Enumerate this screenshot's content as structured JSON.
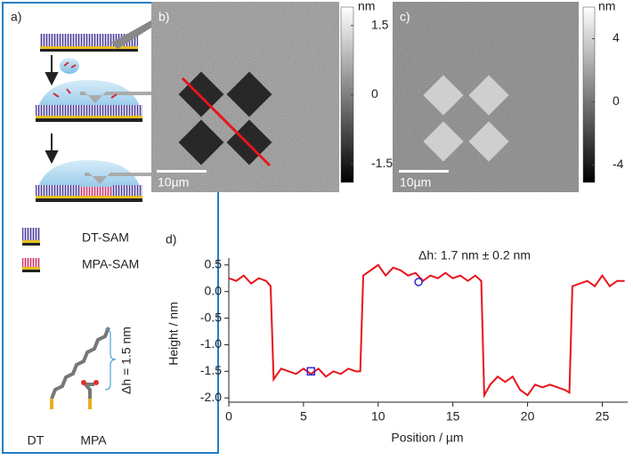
{
  "panel_a": {
    "label": "a)",
    "legend": [
      "DT-SAM",
      "MPA-SAM"
    ],
    "height_note": "Δh = 1.5 nm",
    "molecules": [
      "DT",
      "MPA"
    ]
  },
  "panel_b": {
    "label": "b)",
    "unit": "nm",
    "clim": [
      -1.9,
      1.9
    ],
    "cticks": [
      1.5,
      0,
      -1.5
    ],
    "scale_bar": "10µm"
  },
  "panel_c": {
    "label": "c)",
    "unit": "nm",
    "clim": [
      -5.1,
      6
    ],
    "cticks": [
      4,
      0,
      -4
    ],
    "scale_bar": "10µm"
  },
  "chart_data": {
    "type": "line",
    "label": "d)",
    "annotation": "Δh: 1.7 nm ± 0.2 nm",
    "x_label": "Position / µm",
    "y_label": "Height / nm",
    "xlim": [
      0,
      26.7
    ],
    "ylim": [
      -2.08,
      0.63
    ],
    "xticks": [
      0,
      5,
      10,
      15,
      20,
      25
    ],
    "yticks": [
      {
        "value": -2,
        "label": "-2.0"
      },
      -1.5,
      {
        "value": -1,
        "label": "-1.0"
      },
      -0.5,
      {
        "value": 0,
        "label": "0.0"
      },
      0.5
    ],
    "series": [
      {
        "color": "#e8141b",
        "x": [
          0,
          0.5,
          1,
          1.5,
          2,
          2.5,
          2.8,
          3.0,
          3.5,
          4,
          4.5,
          5,
          5.5,
          6,
          6.5,
          7,
          7.5,
          8,
          8.5,
          8.8,
          9.0,
          9.5,
          10,
          10.5,
          11,
          11.5,
          12,
          12.5,
          13,
          13.5,
          14,
          14.5,
          15,
          15.5,
          16,
          16.5,
          16.9,
          17.1,
          17.5,
          18,
          18.5,
          19,
          19.5,
          20,
          20.5,
          21,
          21.5,
          22,
          22.5,
          22.8,
          23.0,
          23.5,
          24,
          24.5,
          25,
          25.5,
          26,
          26.5
        ],
        "values": [
          0.25,
          0.2,
          0.3,
          0.15,
          0.25,
          0.2,
          0.1,
          -1.65,
          -1.45,
          -1.5,
          -1.55,
          -1.45,
          -1.55,
          -1.45,
          -1.6,
          -1.5,
          -1.55,
          -1.45,
          -1.5,
          -1.5,
          0.3,
          0.4,
          0.5,
          0.3,
          0.45,
          0.4,
          0.3,
          0.35,
          0.2,
          0.3,
          0.25,
          0.35,
          0.25,
          0.3,
          0.2,
          0.3,
          0.2,
          -1.95,
          -1.75,
          -1.6,
          -1.7,
          -1.6,
          -1.85,
          -1.95,
          -1.75,
          -1.8,
          -1.75,
          -1.8,
          -1.85,
          -1.9,
          0.1,
          0.15,
          0.2,
          0.1,
          0.3,
          0.1,
          0.2,
          0.2
        ]
      }
    ],
    "markers": {
      "color": "#2a2ad0",
      "shapes": [
        "square",
        "circle"
      ],
      "x": [
        5.5,
        12.7
      ],
      "values": [
        -1.5,
        0.18
      ]
    }
  }
}
